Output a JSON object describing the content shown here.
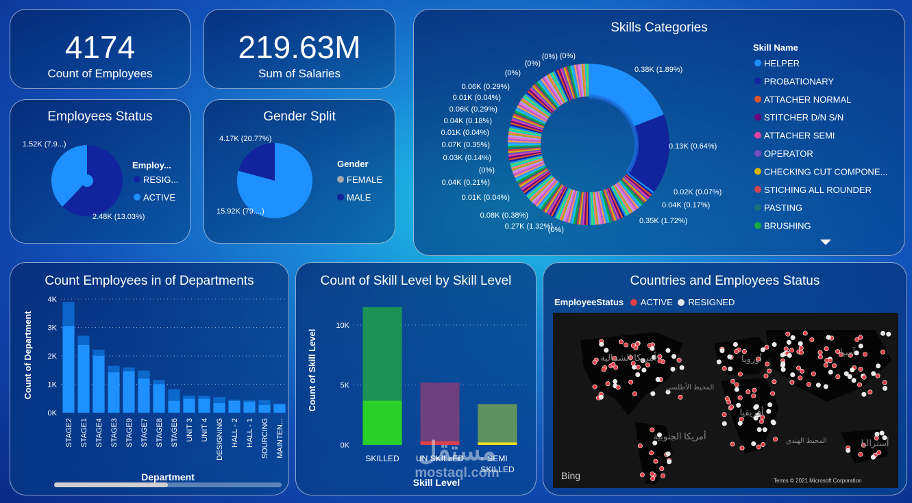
{
  "kpis": {
    "employees": {
      "value": "4174",
      "label": "Count of Employees"
    },
    "salaries": {
      "value": "219.63M",
      "label": "Sum of Salaries"
    }
  },
  "colors": {
    "active": "#1e90ff",
    "resigned": "#12239e",
    "female": "#1e90ff",
    "male": "#12239e"
  },
  "chart_data": [
    {
      "type": "pie",
      "title": "Employees Status",
      "legend_title": "Employ...",
      "slices": [
        {
          "name": "RESIG...",
          "value": 2.48,
          "label": "2.48K (13.03%)",
          "color": "#12239e"
        },
        {
          "name": "ACTIVE",
          "value": 1.52,
          "label": "1.52K (7.9...)",
          "color": "#1e90ff"
        }
      ]
    },
    {
      "type": "pie",
      "title": "Gender Split",
      "legend_title": "Gender",
      "slices": [
        {
          "name": "FEMALE",
          "value": 15.92,
          "label": "15.92K (79....)",
          "color": "#1e90ff"
        },
        {
          "name": "MALE",
          "value": 4.17,
          "label": "4.17K (20.77%)",
          "color": "#12239e"
        }
      ]
    },
    {
      "type": "pie",
      "title": "Skills Categories",
      "legend_title": "Skill Name",
      "legend": [
        {
          "name": "HELPER",
          "color": "#1e90ff"
        },
        {
          "name": "PROBATIONARY",
          "color": "#12239e"
        },
        {
          "name": "ATTACHER NORMAL",
          "color": "#e0552c"
        },
        {
          "name": "STITCHER D/N S/N",
          "color": "#6b007b"
        },
        {
          "name": "ATTACHER SEMI",
          "color": "#e044a7"
        },
        {
          "name": "OPERATOR",
          "color": "#744ec2"
        },
        {
          "name": "CHECKING CUT COMPONE...",
          "color": "#d9b300"
        },
        {
          "name": "STICHING ALL ROUNDER",
          "color": "#d64550"
        },
        {
          "name": "PASTING",
          "color": "#197278"
        },
        {
          "name": "BRUSHING",
          "color": "#1aab40"
        }
      ],
      "labels": [
        "0.38K (1.89%)",
        "0.13K (0.64%)",
        "0.02K (0.07%)",
        "0.04K (0.17%)",
        "0.35K (1.72%)",
        "(0%)",
        "0.27K (1.32%)",
        "0.08K (0.38%)",
        "0.01K (0.04%)",
        "0.04K (0.21%)",
        "(0%)",
        "0.03K (0.14%)",
        "0.07K (0.35%)",
        "0.01K (0.04%)",
        "0.04K (0.18%)",
        "0.06K (0.29%)",
        "0.01K (0.04%)",
        "0.06K (0.29%)",
        "(0%)",
        "(0%)",
        "(0%)",
        "(0%)"
      ]
    },
    {
      "type": "bar",
      "title": "Count Employees in of Departments",
      "xlabel": "Department",
      "ylabel": "Count of Department",
      "ylim": [
        0,
        4000
      ],
      "yticks": [
        "0K",
        "1K",
        "2K",
        "3K",
        "4K"
      ],
      "categories": [
        "STAGE2",
        "STAGE1",
        "STAGE4",
        "STAGE3",
        "STAGE9",
        "STAGE7",
        "STAGE8",
        "STAGE6",
        "UNIT 3",
        "UNIT 4",
        "DESIGNING",
        "HALL - 2",
        "HALL - 1",
        "SOURCING",
        "MAINTEN..."
      ],
      "series": [
        {
          "values": [
            3050,
            2390,
            2000,
            1420,
            1460,
            1200,
            1000,
            420,
            490,
            490,
            340,
            410,
            380,
            270,
            290
          ],
          "color": "#1e90ff"
        },
        {
          "values": [
            850,
            320,
            220,
            230,
            130,
            280,
            150,
            400,
            110,
            100,
            210,
            50,
            50,
            180,
            30
          ],
          "color": "#118dff"
        }
      ]
    },
    {
      "type": "bar",
      "title": "Count of Skill Level by Skill Level",
      "xlabel": "Skill Level",
      "ylabel": "Count of Skill Level",
      "ylim": [
        0,
        12000
      ],
      "yticks": [
        "0K",
        "5K",
        "10K"
      ],
      "categories": [
        "SKILLED",
        "UN SKILLED",
        "SEMI SKILLED"
      ],
      "series": [
        {
          "values": [
            3700,
            300,
            200
          ],
          "colors": [
            "#2ad02a",
            "#e0404a",
            "#f2e21a"
          ]
        },
        {
          "values": [
            7800,
            4900,
            3200
          ],
          "colors": [
            "#1f9a50",
            "#7a3f7a",
            "#6a9a5a"
          ]
        }
      ]
    },
    {
      "type": "map",
      "title": "Countries and Employees Status",
      "legend_title": "EmployeeStatus",
      "legend": [
        {
          "name": "ACTIVE",
          "color": "#e0404a"
        },
        {
          "name": "RESIGNED",
          "color": "#e8e8e8"
        }
      ],
      "region_labels": [
        "أمريكا الشمالية",
        "أوروبا",
        "آسيا",
        "المحيط الأطلسي",
        "أفريقيا",
        "أمريكا الجنوبية",
        "المحيط الهندي",
        "أستراليا"
      ],
      "bing": "Bing",
      "terms": "Terms",
      "copyright": "© 2021 Microsoft Corporation"
    }
  ],
  "watermark": {
    "arabic": "مستقل",
    "latin": "mostaql.com"
  }
}
